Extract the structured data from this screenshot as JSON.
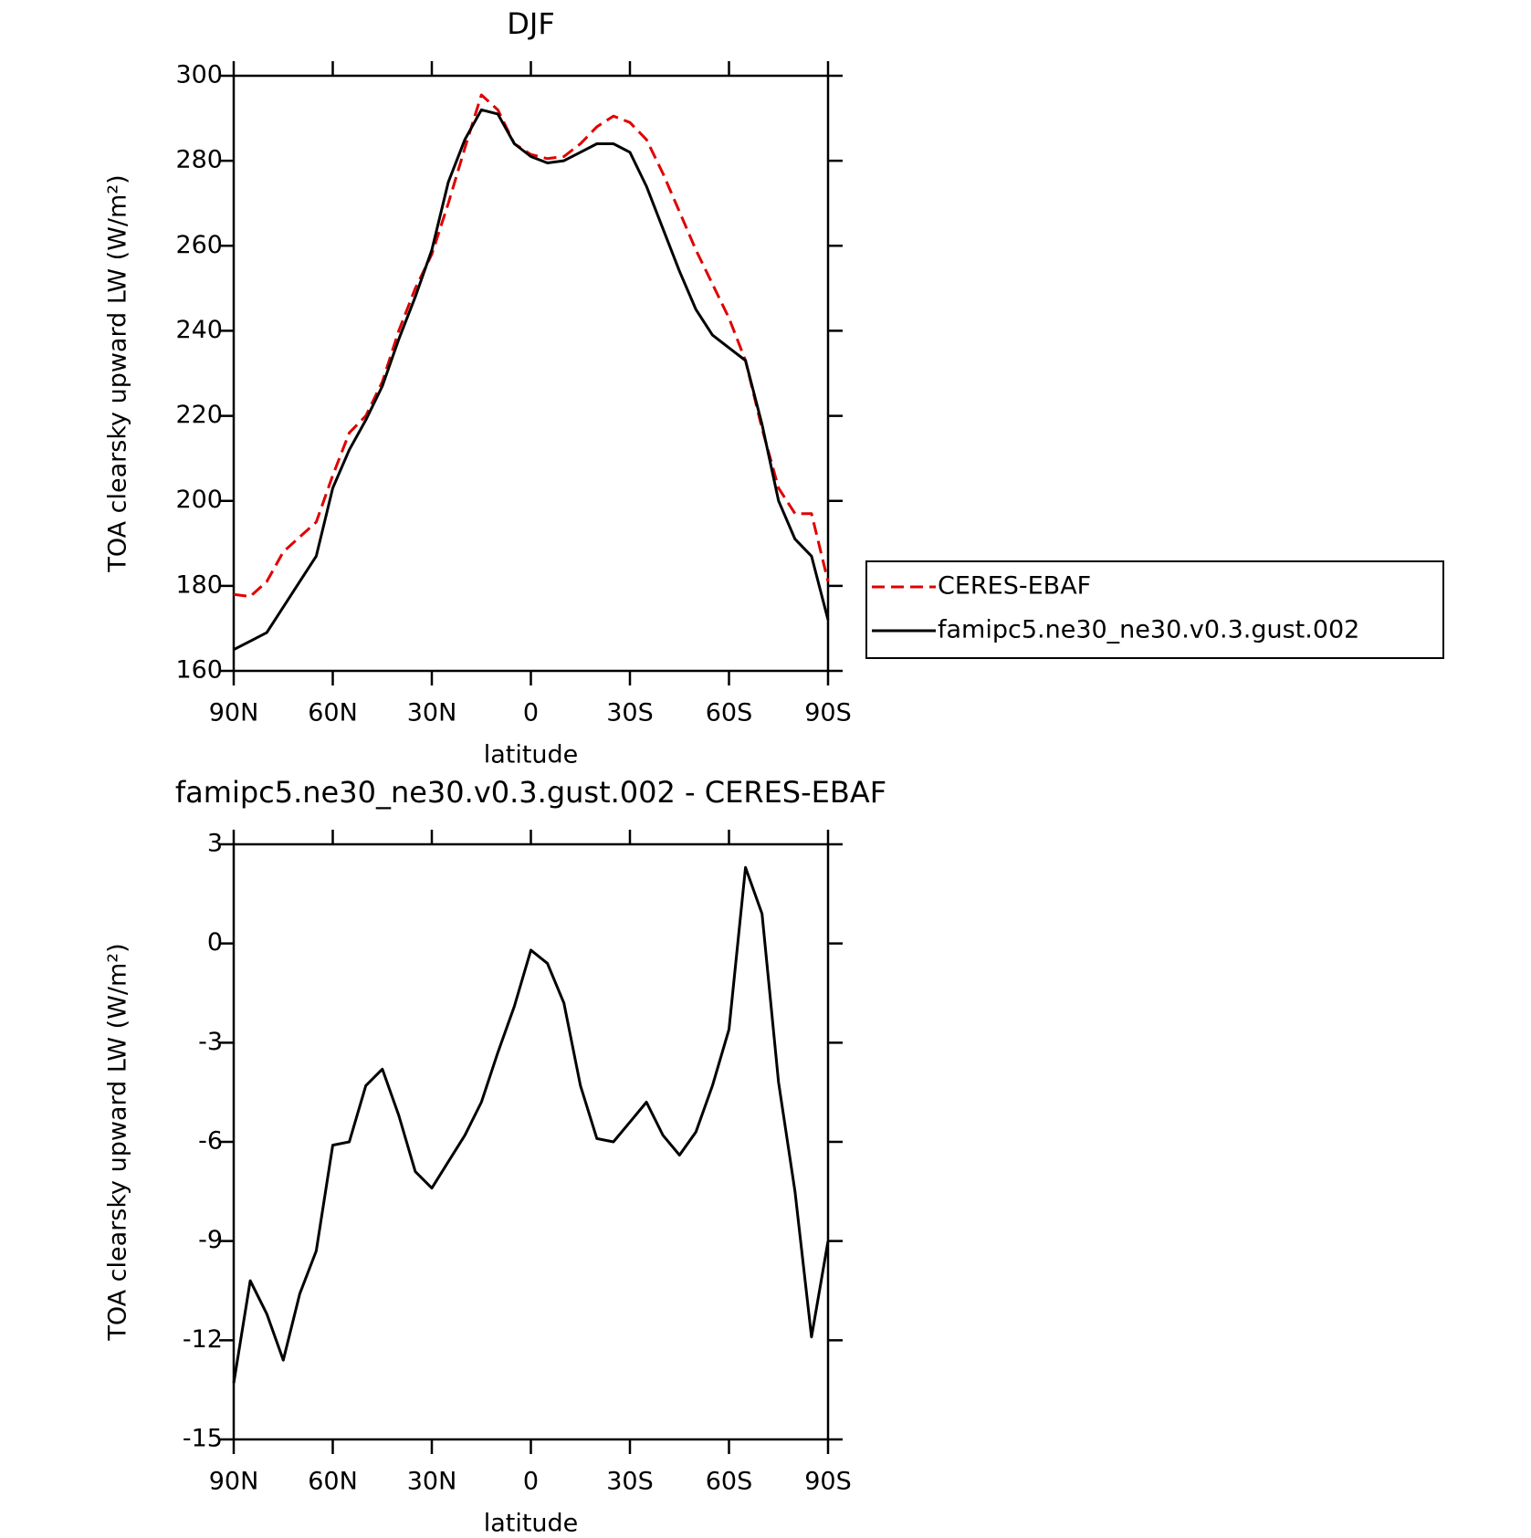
{
  "chart_data": [
    {
      "type": "line",
      "title": "DJF",
      "xlabel": "latitude",
      "ylabel": "TOA clearsky upward LW (W/m²)",
      "x": [
        90,
        85,
        80,
        75,
        70,
        65,
        60,
        55,
        50,
        45,
        40,
        35,
        30,
        25,
        20,
        15,
        10,
        5,
        0,
        -5,
        -10,
        -15,
        -20,
        -25,
        -30,
        -35,
        -40,
        -45,
        -50,
        -55,
        -60,
        -65,
        -70,
        -75,
        -80,
        -85,
        -90
      ],
      "series": [
        {
          "name": "CERES-EBAF",
          "color": "#e00000",
          "linestyle": "dashed",
          "values": [
            178,
            177.5,
            181,
            188,
            191.5,
            195,
            206,
            216,
            220,
            228,
            240,
            250,
            258,
            270,
            283,
            295.5,
            292,
            284,
            281.5,
            280.5,
            281,
            284,
            288,
            290.5,
            289,
            285,
            277,
            268,
            259,
            251,
            243,
            233,
            217,
            203,
            197,
            197,
            181
          ]
        },
        {
          "name": "famipc5.ne30_ne30.v0.3.gust.002",
          "color": "#000000",
          "linestyle": "solid",
          "values": [
            165,
            167,
            169,
            175,
            181,
            187,
            203,
            212,
            219,
            227,
            238,
            248,
            259,
            275,
            285,
            292,
            291,
            284,
            281,
            279.5,
            280,
            282,
            284,
            284,
            282,
            274,
            264,
            254,
            245,
            239,
            236,
            233,
            218,
            200,
            191,
            187,
            172
          ]
        }
      ],
      "xlim": [
        90,
        -90
      ],
      "xticks": [
        {
          "value": 90,
          "label": "90N"
        },
        {
          "value": 60,
          "label": "60N"
        },
        {
          "value": 30,
          "label": "30N"
        },
        0,
        {
          "value": -30,
          "label": "30S"
        },
        {
          "value": -60,
          "label": "60S"
        },
        {
          "value": -90,
          "label": "90S"
        }
      ],
      "ylim": [
        160,
        300
      ],
      "yticks": [
        160,
        180,
        200,
        220,
        240,
        260,
        280,
        300
      ],
      "legend": "right"
    },
    {
      "type": "line",
      "title": "famipc5.ne30_ne30.v0.3.gust.002 - CERES-EBAF",
      "xlabel": "latitude",
      "ylabel": "TOA clearsky upward LW (W/m²)",
      "x": [
        90,
        85,
        80,
        75,
        70,
        65,
        60,
        55,
        50,
        45,
        40,
        35,
        30,
        25,
        20,
        15,
        10,
        5,
        0,
        -5,
        -10,
        -15,
        -20,
        -25,
        -30,
        -35,
        -40,
        -45,
        -50,
        -55,
        -60,
        -65,
        -70,
        -75,
        -80,
        -85,
        -90
      ],
      "series": [
        {
          "color": "#000000",
          "linestyle": "solid",
          "values": [
            -13.3,
            -10.2,
            -11.2,
            -12.6,
            -10.6,
            -9.3,
            -6.1,
            -6.0,
            -4.3,
            -3.8,
            -5.2,
            -6.9,
            -7.4,
            -6.6,
            -5.8,
            -4.8,
            -3.3,
            -1.9,
            -0.2,
            -0.6,
            -1.8,
            -4.3,
            -5.9,
            -6.0,
            -5.4,
            -4.8,
            -5.8,
            -6.4,
            -5.7,
            -4.3,
            -2.6,
            2.3,
            0.9,
            -4.2,
            -7.5,
            -11.9,
            -9.0
          ]
        }
      ],
      "xlim": [
        90,
        -90
      ],
      "xticks": [
        {
          "value": 90,
          "label": "90N"
        },
        {
          "value": 60,
          "label": "60N"
        },
        {
          "value": 30,
          "label": "30N"
        },
        0,
        {
          "value": -30,
          "label": "30S"
        },
        {
          "value": -60,
          "label": "60S"
        },
        {
          "value": -90,
          "label": "90S"
        }
      ],
      "ylim": [
        -15,
        3
      ],
      "yticks": [
        -15,
        -12,
        -9,
        -6,
        -3,
        0,
        3
      ]
    }
  ]
}
